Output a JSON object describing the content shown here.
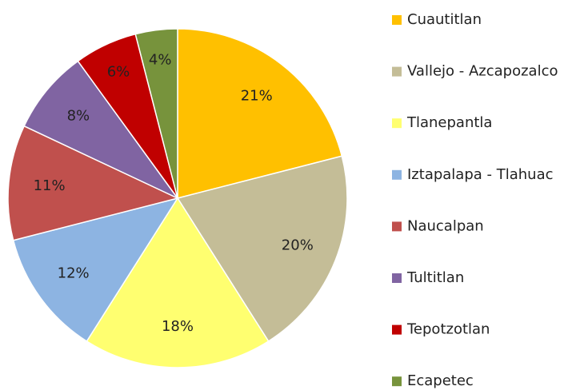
{
  "chart_data": {
    "type": "pie",
    "categories": [
      "Cuautitlan",
      "Vallejo - Azcapozalco",
      "Tlanepantla",
      "Iztapalapa - Tlahuac",
      "Naucalpan",
      "Tultitlan",
      "Tepotzotlan",
      "Ecapetec"
    ],
    "values": [
      21,
      20,
      18,
      12,
      11,
      8,
      6,
      4
    ],
    "value_labels": [
      "21%",
      "20%",
      "18%",
      "12%",
      "11%",
      "8%",
      "6%",
      "4%"
    ],
    "colors": [
      "#FFC000",
      "#C4BD97",
      "#FFFF70",
      "#8DB4E2",
      "#C0504D",
      "#8064A2",
      "#C00000",
      "#77933C"
    ],
    "legend": "right"
  }
}
